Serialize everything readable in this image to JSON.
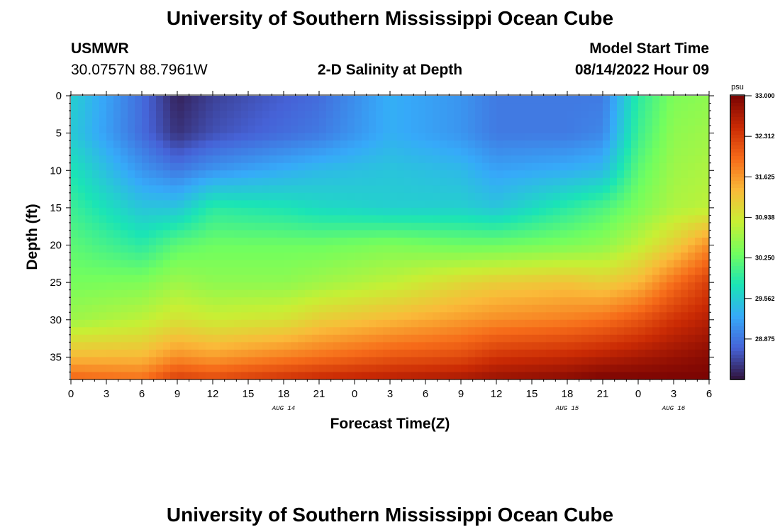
{
  "header": {
    "title": "University of Southern Mississippi Ocean Cube",
    "station": "USMWR",
    "coords": "30.0757N  88.7961W",
    "subtitle": "2-D Salinity at Depth",
    "model_label": "Model Start Time",
    "model_time": "08/14/2022 Hour 09"
  },
  "footer": {
    "title": "University of Southern Mississippi Ocean Cube"
  },
  "colors": {
    "colormap": [
      "#30123b",
      "#4662d7",
      "#36aaf9",
      "#1ae4b6",
      "#72fe5e",
      "#c8ef34",
      "#faba39",
      "#f66b19",
      "#ca2a04",
      "#7a0403"
    ]
  },
  "chart_data": {
    "type": "heatmap",
    "xlabel": "Forecast Time(Z)",
    "ylabel": "Depth (ft)",
    "x_tick_labels": [
      "0",
      "3",
      "6",
      "9",
      "12",
      "15",
      "18",
      "21",
      "0",
      "3",
      "6",
      "9",
      "12",
      "15",
      "18",
      "21",
      "0",
      "3",
      "6"
    ],
    "y_tick_labels": [
      "0",
      "5",
      "10",
      "15",
      "20",
      "25",
      "30",
      "35"
    ],
    "y_range_ft": [
      0,
      38
    ],
    "date_labels": [
      "AUG 14",
      "AUG 15",
      "AUG 16"
    ],
    "colorbar": {
      "unit": "psu",
      "range": [
        28.188,
        33.0
      ],
      "tick_labels": [
        "33.000",
        "32.312",
        "31.625",
        "30.938",
        "30.250",
        "29.562",
        "28.875"
      ]
    },
    "salinity_profiles": {
      "depths_ft": [
        0,
        5,
        10,
        15,
        20,
        25,
        30,
        35,
        38
      ],
      "hours": [
        0,
        6,
        9,
        12,
        18,
        21,
        27,
        33,
        36,
        42,
        45,
        48,
        51,
        54
      ],
      "values": [
        [
          29.6,
          29.55,
          29.8,
          30.0,
          30.2,
          30.35,
          30.6,
          31.4,
          32.0
        ],
        [
          28.8,
          28.8,
          29.1,
          29.5,
          29.9,
          30.4,
          30.8,
          31.4,
          31.9
        ],
        [
          28.3,
          28.4,
          28.9,
          29.5,
          30.2,
          30.6,
          31.0,
          31.7,
          32.3
        ],
        [
          28.5,
          28.6,
          29.1,
          29.9,
          30.3,
          30.5,
          30.9,
          31.6,
          32.2
        ],
        [
          28.7,
          28.8,
          29.3,
          29.8,
          30.3,
          30.5,
          31.0,
          31.8,
          32.4
        ],
        [
          28.8,
          28.9,
          29.4,
          29.7,
          30.3,
          30.6,
          31.2,
          31.9,
          32.5
        ],
        [
          29.3,
          29.3,
          29.5,
          29.6,
          30.4,
          30.8,
          31.4,
          32.1,
          32.6
        ],
        [
          29.1,
          29.1,
          29.4,
          29.6,
          30.3,
          31.1,
          31.6,
          32.2,
          32.7
        ],
        [
          28.9,
          28.9,
          29.2,
          29.5,
          30.3,
          31.2,
          31.7,
          32.4,
          32.8
        ],
        [
          28.9,
          28.9,
          29.3,
          29.9,
          30.4,
          31.3,
          31.8,
          32.5,
          32.9
        ],
        [
          28.9,
          29.0,
          29.4,
          30.1,
          30.5,
          31.2,
          31.9,
          32.6,
          33.0
        ],
        [
          29.9,
          30.0,
          30.2,
          30.4,
          30.8,
          31.4,
          32.1,
          32.7,
          33.0
        ],
        [
          30.4,
          30.5,
          30.6,
          30.7,
          31.2,
          31.9,
          32.4,
          32.8,
          33.0
        ],
        [
          30.5,
          30.6,
          30.7,
          30.8,
          31.7,
          32.3,
          32.6,
          32.9,
          33.0
        ]
      ]
    }
  }
}
